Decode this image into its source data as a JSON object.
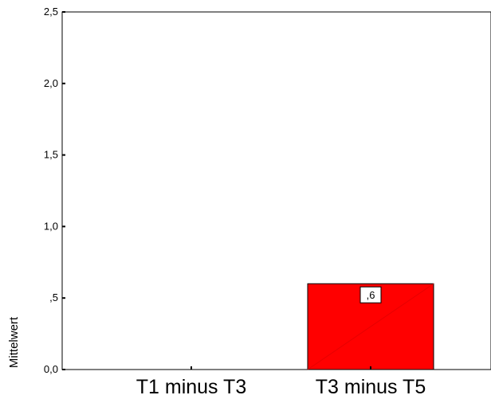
{
  "chart_data": {
    "type": "bar",
    "title": "",
    "xlabel": "",
    "ylabel": "Mittelwert",
    "categories": [
      "T1 minus T3",
      "T3 minus T5"
    ],
    "values": [
      0.0,
      0.6
    ],
    "data_labels": [
      "",
      ",6"
    ],
    "ylim": [
      0,
      2.5
    ],
    "yticks": [
      {
        "value": 0.0,
        "label": "0,0"
      },
      {
        "value": 0.5,
        "label": ",5"
      },
      {
        "value": 1.0,
        "label": "1,0"
      },
      {
        "value": 1.5,
        "label": "1,5"
      },
      {
        "value": 2.0,
        "label": "2,0"
      },
      {
        "value": 2.5,
        "label": "2,5"
      }
    ],
    "grid": false,
    "legend": "none",
    "colors": {
      "bar": "#ff0000",
      "axis": "#000000",
      "label_box": "#ffffff"
    }
  }
}
